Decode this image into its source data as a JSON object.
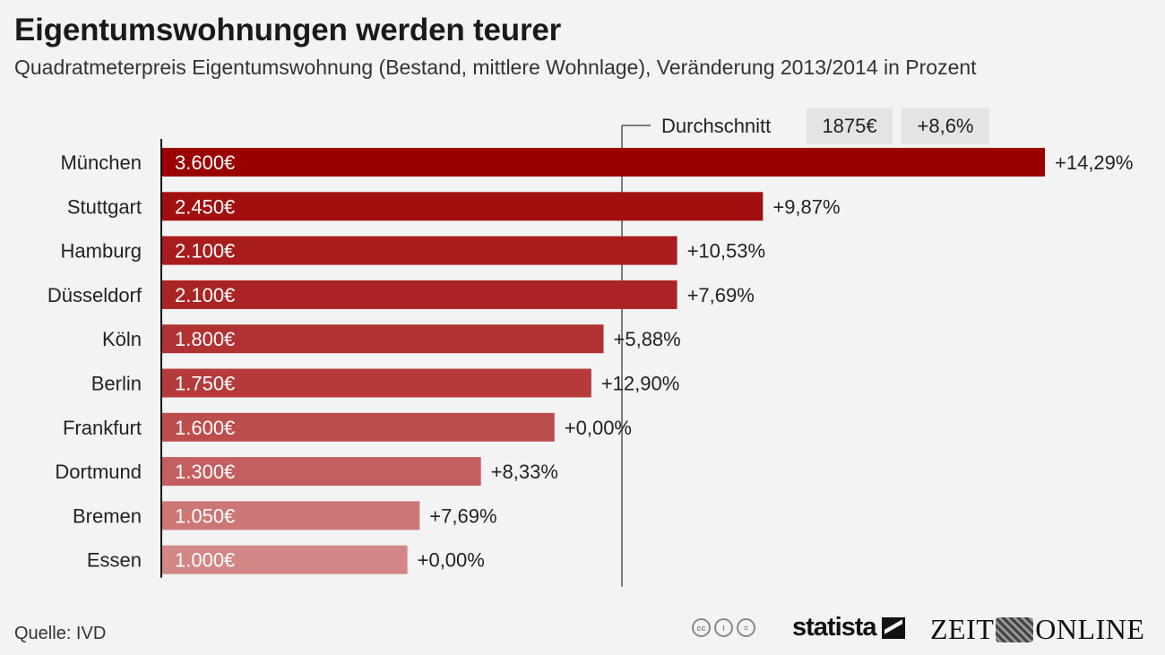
{
  "header": {
    "title": "Eigentumswohnungen werden teurer",
    "subtitle": "Quadratmeterpreis Eigentumswohnung (Bestand, mittlere Wohnlage), Veränderung 2013/2014 in Prozent"
  },
  "footer": {
    "source": "Quelle: IVD",
    "cc_icons": [
      "cc-icon",
      "by-icon",
      "nd-icon"
    ],
    "cc_labels": [
      "cc",
      "i",
      "="
    ],
    "statista": "statista",
    "zeit_left": "ZEIT",
    "zeit_right": "ONLINE"
  },
  "chart_data": {
    "type": "bar",
    "orientation": "horizontal",
    "title": "Eigentumswohnungen werden teurer",
    "subtitle": "Quadratmeterpreis Eigentumswohnung (Bestand, mittlere Wohnlage), Veränderung 2013/2014 in Prozent",
    "xlabel": "",
    "ylabel": "",
    "xlim": [
      0,
      3600
    ],
    "grid": false,
    "categories": [
      "München",
      "Stuttgart",
      "Hamburg",
      "Düsseldorf",
      "Köln",
      "Berlin",
      "Frankfurt",
      "Dortmund",
      "Bremen",
      "Essen"
    ],
    "values": [
      3600,
      2450,
      2100,
      2100,
      1800,
      1750,
      1600,
      1300,
      1050,
      1000
    ],
    "value_labels": [
      "3.600€",
      "2.450€",
      "2.100€",
      "2.100€",
      "1.800€",
      "1.750€",
      "1.600€",
      "1.300€",
      "1.050€",
      "1.000€"
    ],
    "change_labels": [
      "+14,29%",
      "+9,87%",
      "+10,53%",
      "+7,69%",
      "+5,88%",
      "+12,90%",
      "+0,00%",
      "+8,33%",
      "+7,69%",
      "+0,00%"
    ],
    "change_values": [
      14.29,
      9.87,
      10.53,
      7.69,
      5.88,
      12.9,
      0.0,
      8.33,
      7.69,
      0.0
    ],
    "colors": [
      "#9b0000",
      "#a20f0f",
      "#a81c1c",
      "#ab2424",
      "#b03232",
      "#b53b3b",
      "#bc4e4e",
      "#c45f5f",
      "#cc7676",
      "#d38686"
    ],
    "average": {
      "label": "Durchschnitt",
      "value": 1875,
      "value_label": "1875€",
      "change_label": "+8,6%",
      "line_color": "#555555"
    },
    "badge_color": "#e4e4e4"
  }
}
